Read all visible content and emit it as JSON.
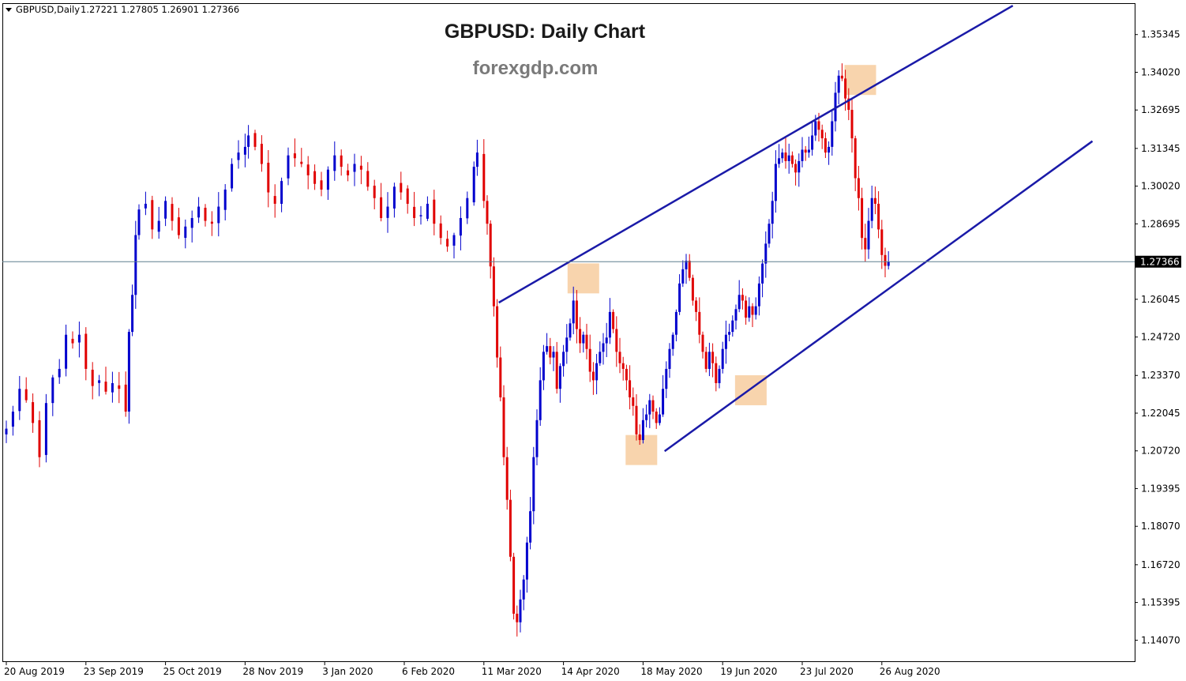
{
  "header": {
    "symbol": "GBPUSD,Daily",
    "ohlc": "1.27221 1.27805 1.26901 1.27366"
  },
  "chart_data": {
    "type": "candlestick",
    "title": "GBPUSD: Daily Chart",
    "subtitle": "forexgdp.com",
    "ylim": [
      1.1333,
      1.3642
    ],
    "yticks": [
      "1.35345",
      "1.34020",
      "1.32695",
      "1.31345",
      "1.30020",
      "1.28695",
      "1.27366",
      "1.26045",
      "1.24720",
      "1.23370",
      "1.22045",
      "1.20720",
      "1.19395",
      "1.18070",
      "1.16720",
      "1.15395",
      "1.14070"
    ],
    "x_ticks": [
      {
        "label": "20 Aug 2019",
        "day": 0
      },
      {
        "label": "23 Sep 2019",
        "day": 24
      },
      {
        "label": "25 Oct 2019",
        "day": 48
      },
      {
        "label": "28 Nov 2019",
        "day": 72
      },
      {
        "label": "3 Jan 2020",
        "day": 96
      },
      {
        "label": "6 Feb 2020",
        "day": 120
      },
      {
        "label": "11 Mar 2020",
        "day": 144
      },
      {
        "label": "14 Apr 2020",
        "day": 168
      },
      {
        "label": "18 May 2020",
        "day": 192
      },
      {
        "label": "19 Jun 2020",
        "day": 216
      },
      {
        "label": "23 Jul 2020",
        "day": 240
      },
      {
        "label": "26 Aug 2020",
        "day": 264
      }
    ],
    "current_price": "1.27366",
    "colors": {
      "bull": "#0000cd",
      "bear": "#e00000",
      "channel": "#1a1aa8",
      "highlight": "#f5c28a",
      "price_line": "#5f7f8f",
      "price_tag": "#000000"
    },
    "closes": [
      {
        "day": 0,
        "close": 1.215
      },
      {
        "day": 2,
        "close": 1.221
      },
      {
        "day": 4,
        "close": 1.229
      },
      {
        "day": 6,
        "close": 1.225
      },
      {
        "day": 8,
        "close": 1.217
      },
      {
        "day": 10,
        "close": 1.205
      },
      {
        "day": 12,
        "close": 1.224
      },
      {
        "day": 14,
        "close": 1.233
      },
      {
        "day": 16,
        "close": 1.236
      },
      {
        "day": 18,
        "close": 1.248
      },
      {
        "day": 20,
        "close": 1.245
      },
      {
        "day": 22,
        "close": 1.248
      },
      {
        "day": 24,
        "close": 1.236
      },
      {
        "day": 26,
        "close": 1.23
      },
      {
        "day": 28,
        "close": 1.232
      },
      {
        "day": 30,
        "close": 1.228
      },
      {
        "day": 32,
        "close": 1.231
      },
      {
        "day": 34,
        "close": 1.229
      },
      {
        "day": 36,
        "close": 1.221
      },
      {
        "day": 37,
        "close": 1.249
      },
      {
        "day": 38,
        "close": 1.262
      },
      {
        "day": 39,
        "close": 1.283
      },
      {
        "day": 40,
        "close": 1.292
      },
      {
        "day": 42,
        "close": 1.294
      },
      {
        "day": 44,
        "close": 1.285
      },
      {
        "day": 46,
        "close": 1.288
      },
      {
        "day": 48,
        "close": 1.295
      },
      {
        "day": 50,
        "close": 1.288
      },
      {
        "day": 52,
        "close": 1.283
      },
      {
        "day": 54,
        "close": 1.286
      },
      {
        "day": 56,
        "close": 1.289
      },
      {
        "day": 58,
        "close": 1.293
      },
      {
        "day": 60,
        "close": 1.288
      },
      {
        "day": 62,
        "close": 1.287
      },
      {
        "day": 64,
        "close": 1.293
      },
      {
        "day": 66,
        "close": 1.299
      },
      {
        "day": 68,
        "close": 1.308
      },
      {
        "day": 70,
        "close": 1.312
      },
      {
        "day": 72,
        "close": 1.314
      },
      {
        "day": 73,
        "close": 1.318
      },
      {
        "day": 75,
        "close": 1.314
      },
      {
        "day": 77,
        "close": 1.308
      },
      {
        "day": 79,
        "close": 1.298
      },
      {
        "day": 81,
        "close": 1.294
      },
      {
        "day": 83,
        "close": 1.302
      },
      {
        "day": 85,
        "close": 1.311
      },
      {
        "day": 87,
        "close": 1.31
      },
      {
        "day": 89,
        "close": 1.308
      },
      {
        "day": 91,
        "close": 1.304
      },
      {
        "day": 93,
        "close": 1.301
      },
      {
        "day": 95,
        "close": 1.299
      },
      {
        "day": 97,
        "close": 1.306
      },
      {
        "day": 99,
        "close": 1.311
      },
      {
        "day": 101,
        "close": 1.307
      },
      {
        "day": 103,
        "close": 1.304
      },
      {
        "day": 105,
        "close": 1.308
      },
      {
        "day": 107,
        "close": 1.306
      },
      {
        "day": 109,
        "close": 1.3
      },
      {
        "day": 111,
        "close": 1.296
      },
      {
        "day": 113,
        "close": 1.289
      },
      {
        "day": 115,
        "close": 1.293
      },
      {
        "day": 117,
        "close": 1.3
      },
      {
        "day": 119,
        "close": 1.298
      },
      {
        "day": 121,
        "close": 1.294
      },
      {
        "day": 123,
        "close": 1.289
      },
      {
        "day": 125,
        "close": 1.29
      },
      {
        "day": 127,
        "close": 1.294
      },
      {
        "day": 129,
        "close": 1.287
      },
      {
        "day": 131,
        "close": 1.282
      },
      {
        "day": 133,
        "close": 1.279
      },
      {
        "day": 135,
        "close": 1.283
      },
      {
        "day": 137,
        "close": 1.289
      },
      {
        "day": 139,
        "close": 1.296
      },
      {
        "day": 141,
        "close": 1.307
      },
      {
        "day": 142,
        "close": 1.312
      },
      {
        "day": 144,
        "close": 1.295
      },
      {
        "day": 145,
        "close": 1.287
      },
      {
        "day": 146,
        "close": 1.272
      },
      {
        "day": 147,
        "close": 1.258
      },
      {
        "day": 148,
        "close": 1.24
      },
      {
        "day": 149,
        "close": 1.226
      },
      {
        "day": 150,
        "close": 1.205
      },
      {
        "day": 151,
        "close": 1.19
      },
      {
        "day": 152,
        "close": 1.17
      },
      {
        "day": 153,
        "close": 1.15
      },
      {
        "day": 154,
        "close": 1.147
      },
      {
        "day": 155,
        "close": 1.155
      },
      {
        "day": 156,
        "close": 1.162
      },
      {
        "day": 157,
        "close": 1.175
      },
      {
        "day": 158,
        "close": 1.186
      },
      {
        "day": 159,
        "close": 1.205
      },
      {
        "day": 160,
        "close": 1.218
      },
      {
        "day": 161,
        "close": 1.232
      },
      {
        "day": 162,
        "close": 1.242
      },
      {
        "day": 163,
        "close": 1.244
      },
      {
        "day": 164,
        "close": 1.24
      },
      {
        "day": 165,
        "close": 1.242
      },
      {
        "day": 166,
        "close": 1.229
      },
      {
        "day": 167,
        "close": 1.237
      },
      {
        "day": 168,
        "close": 1.242
      },
      {
        "day": 169,
        "close": 1.247
      },
      {
        "day": 170,
        "close": 1.252
      },
      {
        "day": 171,
        "close": 1.26
      },
      {
        "day": 172,
        "close": 1.25
      },
      {
        "day": 173,
        "close": 1.245
      },
      {
        "day": 174,
        "close": 1.248
      },
      {
        "day": 175,
        "close": 1.243
      },
      {
        "day": 176,
        "close": 1.235
      },
      {
        "day": 177,
        "close": 1.232
      },
      {
        "day": 178,
        "close": 1.238
      },
      {
        "day": 179,
        "close": 1.242
      },
      {
        "day": 180,
        "close": 1.245
      },
      {
        "day": 181,
        "close": 1.247
      },
      {
        "day": 182,
        "close": 1.256
      },
      {
        "day": 183,
        "close": 1.25
      },
      {
        "day": 184,
        "close": 1.242
      },
      {
        "day": 185,
        "close": 1.238
      },
      {
        "day": 186,
        "close": 1.236
      },
      {
        "day": 187,
        "close": 1.232
      },
      {
        "day": 188,
        "close": 1.226
      },
      {
        "day": 189,
        "close": 1.223
      },
      {
        "day": 190,
        "close": 1.213
      },
      {
        "day": 191,
        "close": 1.211
      },
      {
        "day": 192,
        "close": 1.218
      },
      {
        "day": 193,
        "close": 1.22
      },
      {
        "day": 194,
        "close": 1.225
      },
      {
        "day": 195,
        "close": 1.221
      },
      {
        "day": 196,
        "close": 1.217
      },
      {
        "day": 197,
        "close": 1.22
      },
      {
        "day": 198,
        "close": 1.229
      },
      {
        "day": 199,
        "close": 1.236
      },
      {
        "day": 200,
        "close": 1.243
      },
      {
        "day": 201,
        "close": 1.248
      },
      {
        "day": 202,
        "close": 1.256
      },
      {
        "day": 203,
        "close": 1.266
      },
      {
        "day": 204,
        "close": 1.271
      },
      {
        "day": 205,
        "close": 1.274
      },
      {
        "day": 206,
        "close": 1.268
      },
      {
        "day": 207,
        "close": 1.26
      },
      {
        "day": 208,
        "close": 1.256
      },
      {
        "day": 209,
        "close": 1.248
      },
      {
        "day": 210,
        "close": 1.242
      },
      {
        "day": 211,
        "close": 1.236
      },
      {
        "day": 212,
        "close": 1.242
      },
      {
        "day": 213,
        "close": 1.238
      },
      {
        "day": 214,
        "close": 1.231
      },
      {
        "day": 215,
        "close": 1.236
      },
      {
        "day": 216,
        "close": 1.243
      },
      {
        "day": 217,
        "close": 1.248
      },
      {
        "day": 218,
        "close": 1.249
      },
      {
        "day": 219,
        "close": 1.253
      },
      {
        "day": 220,
        "close": 1.257
      },
      {
        "day": 221,
        "close": 1.262
      },
      {
        "day": 222,
        "close": 1.26
      },
      {
        "day": 223,
        "close": 1.254
      },
      {
        "day": 224,
        "close": 1.258
      },
      {
        "day": 225,
        "close": 1.255
      },
      {
        "day": 226,
        "close": 1.258
      },
      {
        "day": 227,
        "close": 1.266
      },
      {
        "day": 228,
        "close": 1.273
      },
      {
        "day": 229,
        "close": 1.28
      },
      {
        "day": 230,
        "close": 1.287
      },
      {
        "day": 231,
        "close": 1.295
      },
      {
        "day": 232,
        "close": 1.308
      },
      {
        "day": 233,
        "close": 1.31
      },
      {
        "day": 234,
        "close": 1.312
      },
      {
        "day": 235,
        "close": 1.309
      },
      {
        "day": 236,
        "close": 1.311
      },
      {
        "day": 237,
        "close": 1.308
      },
      {
        "day": 238,
        "close": 1.305
      },
      {
        "day": 239,
        "close": 1.309
      },
      {
        "day": 240,
        "close": 1.313
      },
      {
        "day": 241,
        "close": 1.312
      },
      {
        "day": 242,
        "close": 1.313
      },
      {
        "day": 243,
        "close": 1.318
      },
      {
        "day": 244,
        "close": 1.323
      },
      {
        "day": 245,
        "close": 1.32
      },
      {
        "day": 246,
        "close": 1.317
      },
      {
        "day": 247,
        "close": 1.312
      },
      {
        "day": 248,
        "close": 1.314
      },
      {
        "day": 249,
        "close": 1.323
      },
      {
        "day": 250,
        "close": 1.333
      },
      {
        "day": 251,
        "close": 1.339
      },
      {
        "day": 252,
        "close": 1.338
      },
      {
        "day": 253,
        "close": 1.331
      },
      {
        "day": 254,
        "close": 1.327
      },
      {
        "day": 255,
        "close": 1.317
      },
      {
        "day": 256,
        "close": 1.303
      },
      {
        "day": 257,
        "close": 1.296
      },
      {
        "day": 258,
        "close": 1.282
      },
      {
        "day": 259,
        "close": 1.278
      },
      {
        "day": 260,
        "close": 1.288
      },
      {
        "day": 261,
        "close": 1.296
      },
      {
        "day": 262,
        "close": 1.294
      },
      {
        "day": 263,
        "close": 1.285
      },
      {
        "day": 264,
        "close": 1.276
      },
      {
        "day": 265,
        "close": 1.2722
      },
      {
        "day": 266,
        "close": 1.2737
      }
    ],
    "channel_lines": [
      {
        "name": "upper",
        "from": {
          "day": 148.5,
          "price": 1.2593
        },
        "to": {
          "day": 303.5,
          "price": 1.3636
        }
      },
      {
        "name": "lower",
        "from": {
          "day": 198.5,
          "price": 1.2071
        },
        "to": {
          "day": 327.5,
          "price": 1.316
        }
      }
    ],
    "highlights": [
      {
        "day": 174,
        "price": 1.2678
      },
      {
        "day": 191.5,
        "price": 1.2075
      },
      {
        "day": 224.5,
        "price": 1.2285
      },
      {
        "day": 257.5,
        "price": 1.3375
      }
    ]
  }
}
